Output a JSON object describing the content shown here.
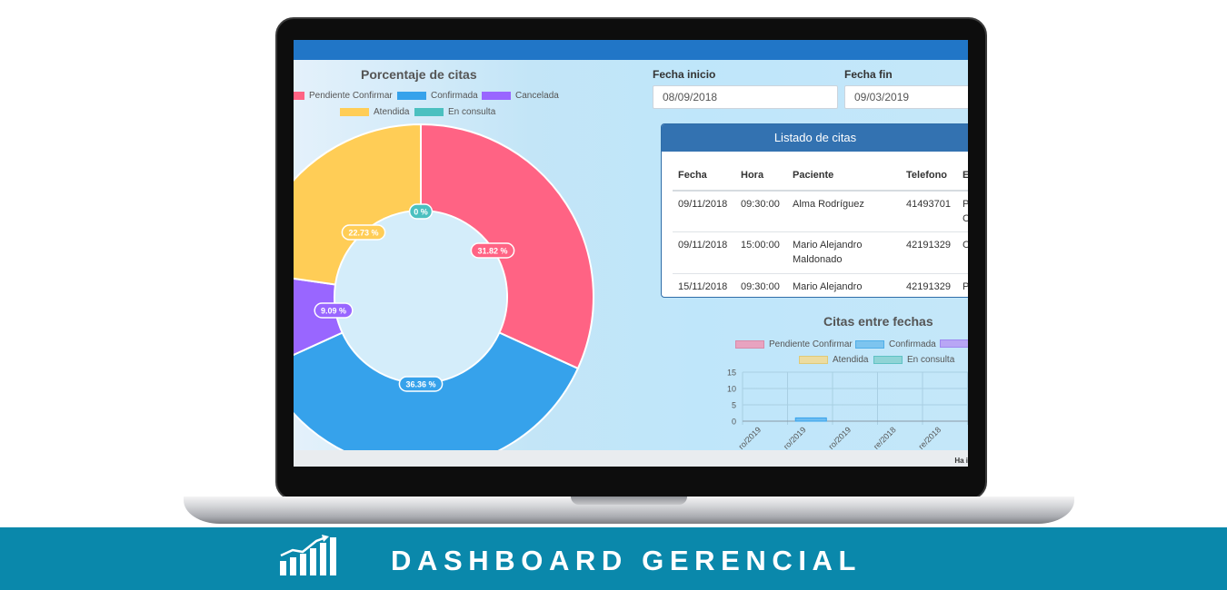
{
  "donut": {
    "title": "Porcentaje de citas",
    "legend": [
      {
        "label": "Pendiente Confirmar",
        "color": "#ff6384"
      },
      {
        "label": "Confirmada",
        "color": "#36a2eb"
      },
      {
        "label": "Cancelada",
        "color": "#9966ff"
      },
      {
        "label": "Atendida",
        "color": "#ffcd56"
      },
      {
        "label": "En consulta",
        "color": "#4bc0c0"
      }
    ]
  },
  "filters": {
    "start_label": "Fecha inicio",
    "start_value": "08/09/2018",
    "end_label": "Fecha fin",
    "end_value": "09/03/2019"
  },
  "table": {
    "title": "Listado de citas",
    "headers": [
      "Fecha",
      "Hora",
      "Paciente",
      "Telefono",
      "E"
    ],
    "rows": [
      {
        "fecha": "09/11/2018",
        "hora": "09:30:00",
        "paciente": "Alma Rodríguez",
        "telefono": "41493701",
        "estado": "P",
        "estado2": "C"
      },
      {
        "fecha": "09/11/2018",
        "hora": "15:00:00",
        "paciente": "Mario Alejandro",
        "paciente2": "Maldonado",
        "telefono": "42191329",
        "estado": "C"
      },
      {
        "fecha": "15/11/2018",
        "hora": "09:30:00",
        "paciente": "Mario Alejandro",
        "telefono": "42191329",
        "estado": "P"
      }
    ]
  },
  "bar": {
    "title": "Citas entre fechas",
    "legend": [
      {
        "label": "Pendiente Confirmar",
        "color": "#ff6384"
      },
      {
        "label": "Confirmada",
        "color": "#36a2eb"
      },
      {
        "label": "",
        "color": "#9966ff"
      },
      {
        "label": "Atendida",
        "color": "#ffcd56"
      },
      {
        "label": "En consulta",
        "color": "#4bc0c0"
      }
    ],
    "x_tick_labels": [
      "ro/2019",
      "ro/2019",
      "ro/2019",
      "re/2018",
      "re/2018"
    ]
  },
  "footer_text": "Ha i",
  "banner": {
    "title": "DASHBOARD GERENCIAL",
    "icon": "bar-chart-growth-icon"
  },
  "chart_data": [
    {
      "type": "pie",
      "title": "Porcentaje de citas",
      "labels": [
        "Pendiente Confirmar",
        "Confirmada",
        "Cancelada",
        "Atendida",
        "En consulta"
      ],
      "values": [
        31.82,
        36.36,
        9.09,
        22.73,
        0
      ],
      "value_labels": [
        "31.82 %",
        "36.36 %",
        "9.09 %",
        "22.73 %",
        "0 %"
      ],
      "colors": [
        "#ff6384",
        "#36a2eb",
        "#9966ff",
        "#ffcd56",
        "#4bc0c0"
      ],
      "legend": "top"
    },
    {
      "type": "bar",
      "title": "Citas entre fechas",
      "categories": [
        "ro/2019",
        "ro/2019",
        "ro/2019",
        "re/2018",
        "re/2018"
      ],
      "series": [
        {
          "name": "Pendiente Confirmar",
          "values": [
            0,
            0,
            0,
            0,
            0
          ]
        },
        {
          "name": "Confirmada",
          "values": [
            0,
            1,
            0,
            0,
            0
          ]
        }
      ],
      "yticks": [
        0,
        5,
        10,
        15
      ],
      "ylim": [
        0,
        15
      ],
      "grid": true,
      "legend": "top"
    }
  ]
}
